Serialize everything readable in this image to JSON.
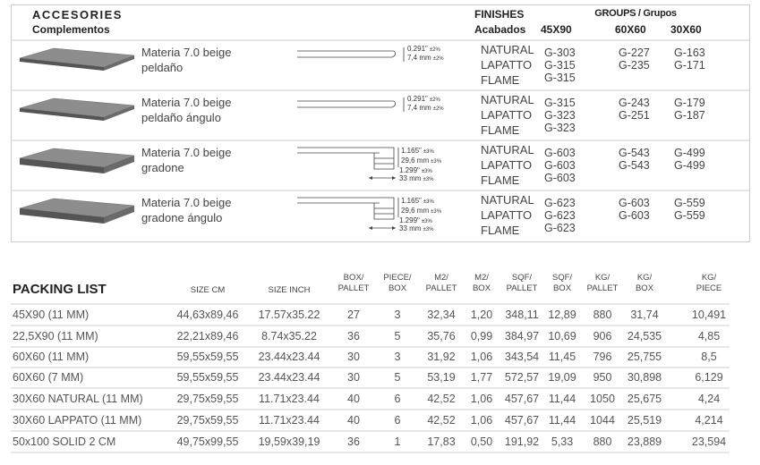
{
  "accessories": {
    "header": {
      "title": "ACCESORIES",
      "subtitle": "Complementos",
      "finishes_title": "FINISHES",
      "finishes_subtitle": "Acabados",
      "groups_title": "GROUPS / Grupos",
      "group_sizes": [
        "45X90",
        "60X60",
        "30X60"
      ]
    },
    "rows": [
      {
        "name": [
          "Materia 7.0 beige",
          "peldaño"
        ],
        "dimensions": [
          {
            "value": "0.291\"",
            "tolerance": "±2%"
          },
          {
            "value": "7,4 mm",
            "tolerance": "±2%"
          }
        ],
        "finishes": [
          "NATURAL",
          "LAPATTO",
          "FLAME"
        ],
        "groups": [
          [
            "G-303",
            "G-315",
            "G-315"
          ],
          [
            "G-227",
            "G-235"
          ],
          [
            "G-163",
            "G-171"
          ]
        ]
      },
      {
        "name": [
          "Materia 7.0 beige",
          "peldaño ángulo"
        ],
        "dimensions": [
          {
            "value": "0.291\"",
            "tolerance": "±2%"
          },
          {
            "value": "7,4 mm",
            "tolerance": "±2%"
          }
        ],
        "finishes": [
          "NATURAL",
          "LAPATTO",
          "FLAME"
        ],
        "groups": [
          [
            "G-315",
            "G-323",
            "G-323"
          ],
          [
            "G-243",
            "G-251"
          ],
          [
            "G-179",
            "G-187"
          ]
        ]
      },
      {
        "name": [
          "Materia 7.0 beige",
          "gradone"
        ],
        "dimensions": [
          {
            "value": "1.165\"",
            "tolerance": "±3%"
          },
          {
            "value": "29,6 mm",
            "tolerance": "±3%"
          },
          {
            "value": "1.299\"",
            "tolerance": "±3%"
          },
          {
            "value": "33 mm",
            "tolerance": "±3%"
          }
        ],
        "finishes": [
          "NATURAL",
          "LAPATTO",
          "FLAME"
        ],
        "groups": [
          [
            "G-603",
            "G-603",
            "G-603"
          ],
          [
            "G-543",
            "G-543"
          ],
          [
            "G-499",
            "G-499"
          ]
        ]
      },
      {
        "name": [
          "Materia 7.0 beige",
          "gradone ángulo"
        ],
        "dimensions": [
          {
            "value": "1.165\"",
            "tolerance": "±3%"
          },
          {
            "value": "29,6 mm",
            "tolerance": "±3%"
          },
          {
            "value": "1.299\"",
            "tolerance": "±3%"
          },
          {
            "value": "33 mm",
            "tolerance": "±3%"
          }
        ],
        "finishes": [
          "NATURAL",
          "LAPATTO",
          "FLAME"
        ],
        "groups": [
          [
            "G-623",
            "G-623",
            "G-623"
          ],
          [
            "G-603",
            "G-603"
          ],
          [
            "G-559",
            "G-559"
          ]
        ]
      }
    ]
  },
  "packing_list": {
    "title": "PACKING LIST",
    "columns": [
      [
        "SIZE CM"
      ],
      [
        "SIZE INCH"
      ],
      [
        "BOX/",
        "PALLET"
      ],
      [
        "PIECE/",
        "BOX"
      ],
      [
        "M2/",
        "PALLET"
      ],
      [
        "M2/",
        "BOX"
      ],
      [
        "SQF/",
        "PALLET"
      ],
      [
        "SQF/",
        "BOX"
      ],
      [
        "KG/",
        "PALLET"
      ],
      [
        "KG/",
        "BOX"
      ],
      [
        "KG/",
        "PIECE"
      ]
    ],
    "rows": [
      [
        "45X90 (11 MM)",
        "44,63x89,46",
        "17.57x35.22",
        "27",
        "3",
        "32,34",
        "1,20",
        "348,11",
        "12,89",
        "880",
        "31,74",
        "10,491"
      ],
      [
        "22,5X90 (11 MM)",
        "22,21x89,46",
        "8.74x35.22",
        "36",
        "5",
        "35,76",
        "0,99",
        "384,97",
        "10,69",
        "906",
        "24,535",
        "4,85"
      ],
      [
        "60X60 (11 MM)",
        "59,55x59,55",
        "23.44x23.44",
        "30",
        "3",
        "31,92",
        "1,06",
        "343,54",
        "11,45",
        "796",
        "25,755",
        "8,5"
      ],
      [
        "60X60 (7 MM)",
        "59,55x59,55",
        "23.44x23.44",
        "30",
        "5",
        "53,19",
        "1,77",
        "572,57",
        "19,09",
        "950",
        "30,898",
        "6,129"
      ],
      [
        "30X60 NATURAL (11 MM)",
        "29,75x59,55",
        "11.71x23.44",
        "40",
        "6",
        "42,52",
        "1,06",
        "457,67",
        "11,44",
        "1050",
        "25,675",
        "4,24"
      ],
      [
        "30X60 LAPPATO (11 MM)",
        "29,75x59,55",
        "11.71x23.44",
        "40",
        "6",
        "42,52",
        "1,06",
        "457,67",
        "11,44",
        "1044",
        "25,519",
        "4,214"
      ],
      [
        "50x100 SOLID 2 CM",
        "49,75x99,55",
        "19,59x39,19",
        "36",
        "1",
        "17,83",
        "0,50",
        "191,92",
        "5,33",
        "880",
        "23,889",
        "23,594"
      ]
    ]
  }
}
